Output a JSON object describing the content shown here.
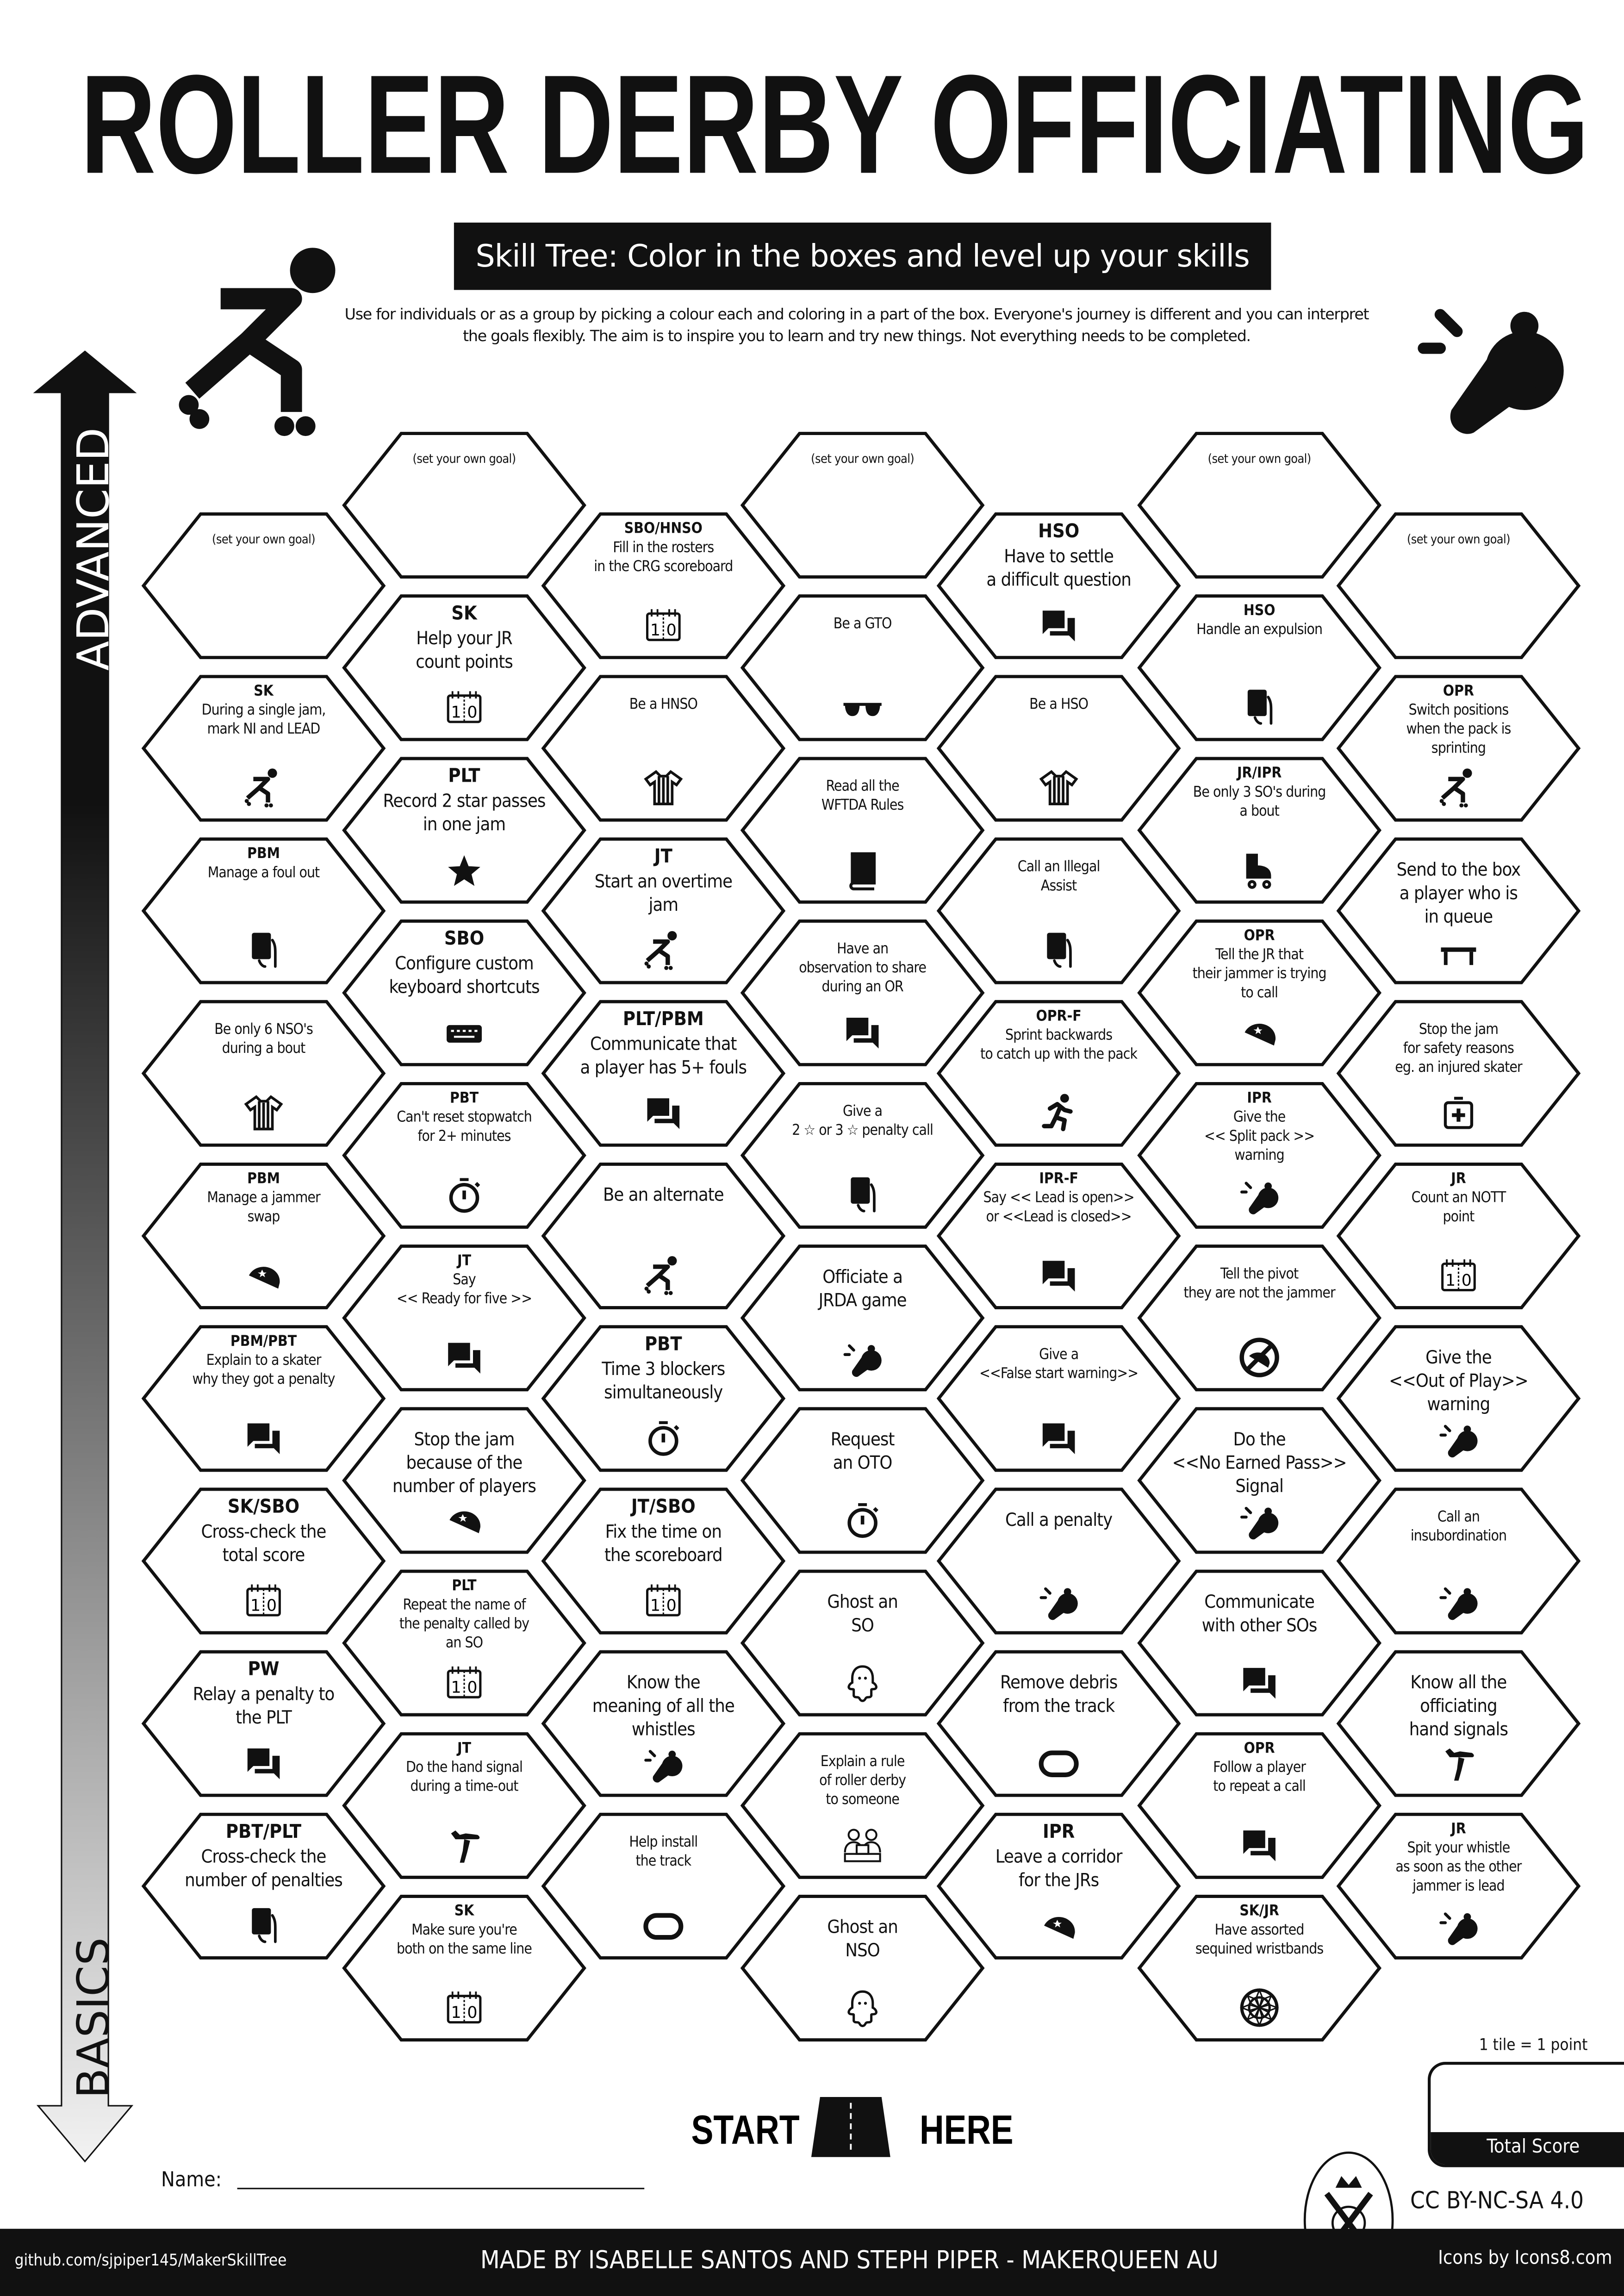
{
  "header": {
    "title": "ROLLER DERBY OFFICIATING",
    "subtitle": "Skill Tree:  Color in the boxes and level up your skills",
    "intro": "Use for individuals or as a group by picking a colour each and coloring in a part of the box.  Everyone's journey is different and you can interpret the goals flexibly.  The aim is to inspire you to learn and try new things. Not everything needs to be completed."
  },
  "axis": {
    "top_label": "ADVANCED",
    "bottom_label": "BASICS"
  },
  "goal_placeholder": "(set your own goal)",
  "columns": [
    [
      {
        "goal": true
      },
      {
        "role": "SK",
        "text": "During a single jam,\nmark NI and LEAD",
        "icon": "skater-icon"
      },
      {
        "role": "PBM",
        "text": "Manage a foul out",
        "icon": "penalty-card-icon"
      },
      {
        "role": "",
        "text": "Be only 6 NSO's\nduring a bout",
        "icon": "referee-shirt-icon"
      },
      {
        "role": "PBM",
        "text": "Manage a jammer\nswap",
        "icon": "jammer-helmet-icon"
      },
      {
        "role": "PBM/PBT",
        "text": "Explain to a skater\nwhy they got a penalty",
        "icon": "chat-icon"
      },
      {
        "role": "SK/SBO",
        "text": "Cross-check the\ntotal score",
        "icon": "scoreboard-icon"
      },
      {
        "role": "PW",
        "text": "Relay a penalty to\nthe PLT",
        "icon": "chat-icon"
      },
      {
        "role": "PBT/PLT",
        "text": "Cross-check the\nnumber of penalties",
        "icon": "penalty-card-icon"
      }
    ],
    [
      {
        "goal": true
      },
      {
        "role": "SK",
        "text": "Help your JR\ncount points",
        "icon": "scoreboard-icon"
      },
      {
        "role": "PLT",
        "text": "Record 2 star passes\nin one jam",
        "icon": "star-icon"
      },
      {
        "role": "SBO",
        "text": "Configure custom\nkeyboard shortcuts",
        "icon": "keyboard-icon"
      },
      {
        "role": "PBT",
        "text": "Can't reset stopwatch\nfor 2+ minutes",
        "icon": "stopwatch-icon"
      },
      {
        "role": "JT",
        "text": "Say\n<< Ready for five >>",
        "icon": "chat-icon"
      },
      {
        "role": "",
        "text": "Stop the jam\nbecause of the\nnumber of players",
        "icon": "jammer-helmet-icon"
      },
      {
        "role": "PLT",
        "text": "Repeat the name of\nthe penalty called by\nan SO",
        "icon": "scoreboard-icon"
      },
      {
        "role": "JT",
        "text": "Do the hand signal\nduring a time-out",
        "icon": "hand-signal-icon"
      },
      {
        "role": "SK",
        "text": "Make sure you're\nboth on the same line",
        "icon": "scoreboard-icon"
      }
    ],
    [
      {
        "role": "SBO/HNSO",
        "text": "Fill in the rosters\nin the CRG scoreboard",
        "icon": "scoreboard-icon"
      },
      {
        "role": "",
        "text": "Be a HNSO",
        "icon": "referee-shirt-icon"
      },
      {
        "role": "JT",
        "text": "Start an overtime\njam",
        "icon": "skater-icon"
      },
      {
        "role": "PLT/PBM",
        "text": "Communicate that\na player has 5+ fouls",
        "icon": "chat-icon"
      },
      {
        "role": "",
        "text": "Be an alternate",
        "icon": "skater-icon"
      },
      {
        "role": "PBT",
        "text": "Time 3 blockers\nsimultaneously",
        "icon": "stopwatch-icon"
      },
      {
        "role": "JT/SBO",
        "text": "Fix the time on\nthe scoreboard",
        "icon": "scoreboard-icon"
      },
      {
        "role": "",
        "text": "Know the\nmeaning of all the\nwhistles",
        "icon": "whistle-icon"
      },
      {
        "role": "",
        "text": "Help install\nthe track",
        "icon": "track-icon"
      }
    ],
    [
      {
        "goal": true
      },
      {
        "role": "",
        "text": "Be a GTO",
        "icon": "sunglasses-icon"
      },
      {
        "role": "",
        "text": "Read all the\nWFTDA Rules",
        "icon": "book-icon"
      },
      {
        "role": "",
        "text": "Have an\nobservation to share\nduring an OR",
        "icon": "chat-icon"
      },
      {
        "role": "",
        "text": "Give a\n2 ☆ or 3 ☆ penalty call",
        "icon": "penalty-card-icon"
      },
      {
        "role": "",
        "text": "Officiate a\nJRDA game",
        "icon": "whistle-icon"
      },
      {
        "role": "",
        "text": "Request\nan OTO",
        "icon": "stopwatch-icon"
      },
      {
        "role": "",
        "text": "Ghost an\nSO",
        "icon": "ghost-icon"
      },
      {
        "role": "",
        "text": "Explain a rule\nof roller derby\nto someone",
        "icon": "people-laptop-icon"
      },
      {
        "role": "",
        "text": "Ghost an\nNSO",
        "icon": "ghost-icon"
      }
    ],
    [
      {
        "role": "HSO",
        "text": "Have to settle\na difficult question",
        "icon": "chat-icon"
      },
      {
        "role": "",
        "text": "Be a HSO",
        "icon": "referee-shirt-icon"
      },
      {
        "role": "",
        "text": "Call an Illegal\nAssist",
        "icon": "penalty-card-icon"
      },
      {
        "role": "OPR-F",
        "text": "Sprint backwards\nto catch up with the pack",
        "icon": "runner-icon"
      },
      {
        "role": "IPR-F",
        "text": "Say << Lead is open>>\nor <<Lead is closed>>",
        "icon": "chat-icon"
      },
      {
        "role": "",
        "text": "Give a\n<<False start warning>>",
        "icon": "chat-icon"
      },
      {
        "role": "",
        "text": "Call a penalty",
        "icon": "whistle-icon"
      },
      {
        "role": "",
        "text": "Remove debris\nfrom the track",
        "icon": "track-icon"
      },
      {
        "role": "IPR",
        "text": "Leave a corridor\nfor the JRs",
        "icon": "jammer-helmet-icon"
      }
    ],
    [
      {
        "goal": true
      },
      {
        "role": "HSO",
        "text": "Handle an expulsion",
        "icon": "penalty-card-icon"
      },
      {
        "role": "JR/IPR",
        "text": "Be only 3 SO's during\na bout",
        "icon": "roller-skate-icon"
      },
      {
        "role": "OPR",
        "text": "Tell the JR that\ntheir jammer is trying\nto call",
        "icon": "jammer-helmet-icon"
      },
      {
        "role": "IPR",
        "text": "Give the\n<< Split pack >>\nwarning",
        "icon": "whistle-icon"
      },
      {
        "role": "",
        "text": "Tell the pivot\nthey are not the jammer",
        "icon": "no-jammer-icon"
      },
      {
        "role": "",
        "text": "Do the\n<<No Earned Pass>>\nSignal",
        "icon": "whistle-icon"
      },
      {
        "role": "",
        "text": "Communicate\nwith other SOs",
        "icon": "chat-icon"
      },
      {
        "role": "OPR",
        "text": "Follow a player\nto repeat a call",
        "icon": "chat-icon"
      },
      {
        "role": "SK/JR",
        "text": "Have assorted\nsequined wristbands",
        "icon": "wristband-icon"
      }
    ],
    [
      {
        "goal": true
      },
      {
        "role": "OPR",
        "text": "Switch positions\nwhen the pack is\nsprinting",
        "icon": "skater-icon"
      },
      {
        "role": "",
        "text": "Send to the box\na player who is\nin queue",
        "icon": "penalty-bench-icon"
      },
      {
        "role": "",
        "text": "Stop the jam\nfor safety reasons\neg. an injured skater",
        "icon": "first-aid-icon"
      },
      {
        "role": "JR",
        "text": "Count an NOTT\npoint",
        "icon": "scoreboard-icon"
      },
      {
        "role": "",
        "text": "Give the\n<<Out of Play>>\nwarning",
        "icon": "whistle-icon"
      },
      {
        "role": "",
        "text": "Call an\ninsubordination",
        "icon": "whistle-icon"
      },
      {
        "role": "",
        "text": "Know all the\nofficiating\nhand signals",
        "icon": "hand-signal-icon"
      },
      {
        "role": "JR",
        "text": "Spit your whistle\nas soon as the other\njammer is lead",
        "icon": "whistle-icon"
      }
    ]
  ],
  "score": {
    "rule": "1 tile = 1 point",
    "label": "Total Score"
  },
  "start": {
    "left": "START",
    "right": "HERE"
  },
  "name_label": "Name:",
  "license": "CC BY-NC-SA 4.0",
  "logo_text": "MAKERQUEEN",
  "footer": {
    "github": "github.com/sjpiper145/MakerSkillTree",
    "credits": "MADE BY ISABELLE SANTOS AND STEPH PIPER  -  MAKERQUEEN AU",
    "icons": "Icons by Icons8.com"
  },
  "colors": {
    "ink": "#111111",
    "paper": "#ffffff",
    "arrow_bottom": "#e6e6e6"
  }
}
